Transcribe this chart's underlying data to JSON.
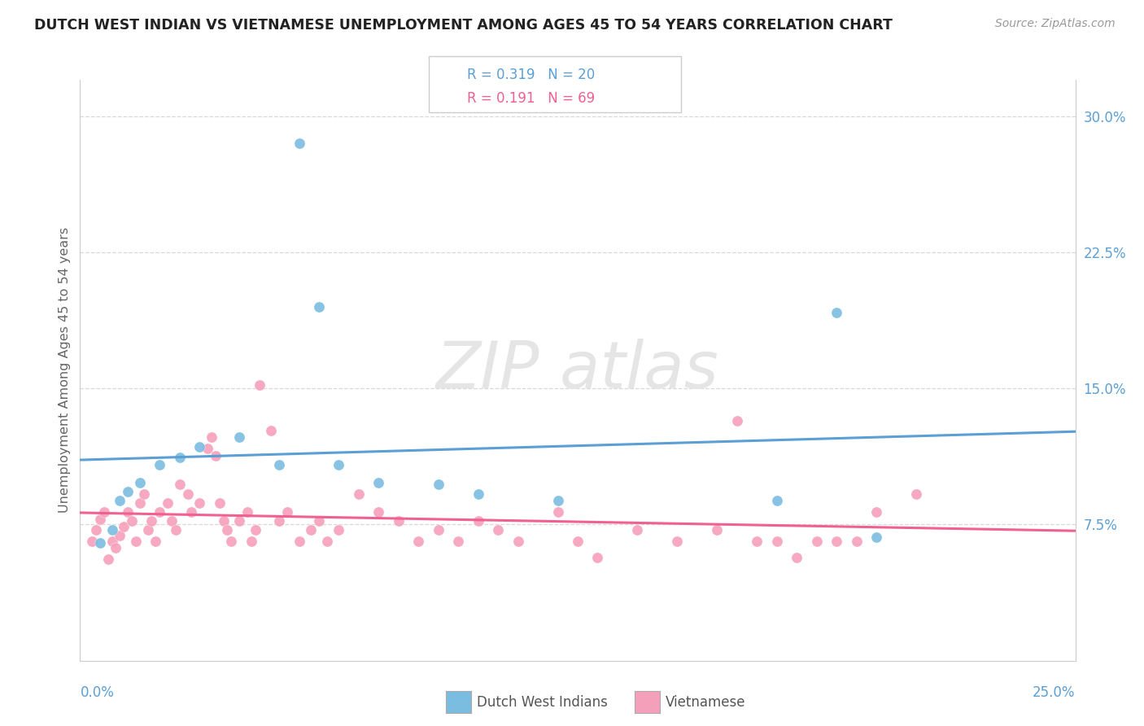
{
  "title": "DUTCH WEST INDIAN VS VIETNAMESE UNEMPLOYMENT AMONG AGES 45 TO 54 YEARS CORRELATION CHART",
  "source": "Source: ZipAtlas.com",
  "ylabel": "Unemployment Among Ages 45 to 54 years",
  "legend1_r": "0.319",
  "legend1_n": "20",
  "legend2_r": "0.191",
  "legend2_n": "69",
  "blue_scatter_color": "#7bbde0",
  "pink_scatter_color": "#f5a0bb",
  "blue_line_color": "#5b9fd4",
  "pink_line_color": "#f06090",
  "xlim": [
    0.0,
    0.25
  ],
  "ylim": [
    0.0,
    0.32
  ],
  "xtick_left": "0.0%",
  "xtick_right": "25.0%",
  "ytick_positions": [
    0.075,
    0.15,
    0.225,
    0.3
  ],
  "ytick_labels": [
    "7.5%",
    "15.0%",
    "22.5%",
    "30.0%"
  ],
  "grid_color": "#d8d8d8",
  "bg_color": "#ffffff",
  "blue_scatter": [
    [
      0.005,
      0.065
    ],
    [
      0.008,
      0.072
    ],
    [
      0.01,
      0.088
    ],
    [
      0.012,
      0.093
    ],
    [
      0.015,
      0.098
    ],
    [
      0.02,
      0.108
    ],
    [
      0.025,
      0.112
    ],
    [
      0.03,
      0.118
    ],
    [
      0.04,
      0.123
    ],
    [
      0.05,
      0.108
    ],
    [
      0.055,
      0.285
    ],
    [
      0.06,
      0.195
    ],
    [
      0.065,
      0.108
    ],
    [
      0.075,
      0.098
    ],
    [
      0.09,
      0.097
    ],
    [
      0.1,
      0.092
    ],
    [
      0.12,
      0.088
    ],
    [
      0.175,
      0.088
    ],
    [
      0.19,
      0.192
    ],
    [
      0.2,
      0.068
    ]
  ],
  "pink_scatter": [
    [
      0.003,
      0.066
    ],
    [
      0.004,
      0.072
    ],
    [
      0.005,
      0.078
    ],
    [
      0.006,
      0.082
    ],
    [
      0.007,
      0.056
    ],
    [
      0.008,
      0.066
    ],
    [
      0.009,
      0.062
    ],
    [
      0.01,
      0.069
    ],
    [
      0.011,
      0.074
    ],
    [
      0.012,
      0.082
    ],
    [
      0.013,
      0.077
    ],
    [
      0.014,
      0.066
    ],
    [
      0.015,
      0.087
    ],
    [
      0.016,
      0.092
    ],
    [
      0.017,
      0.072
    ],
    [
      0.018,
      0.077
    ],
    [
      0.019,
      0.066
    ],
    [
      0.02,
      0.082
    ],
    [
      0.022,
      0.087
    ],
    [
      0.023,
      0.077
    ],
    [
      0.024,
      0.072
    ],
    [
      0.025,
      0.097
    ],
    [
      0.027,
      0.092
    ],
    [
      0.028,
      0.082
    ],
    [
      0.03,
      0.087
    ],
    [
      0.032,
      0.117
    ],
    [
      0.033,
      0.123
    ],
    [
      0.034,
      0.113
    ],
    [
      0.035,
      0.087
    ],
    [
      0.036,
      0.077
    ],
    [
      0.037,
      0.072
    ],
    [
      0.038,
      0.066
    ],
    [
      0.04,
      0.077
    ],
    [
      0.042,
      0.082
    ],
    [
      0.043,
      0.066
    ],
    [
      0.044,
      0.072
    ],
    [
      0.045,
      0.152
    ],
    [
      0.048,
      0.127
    ],
    [
      0.05,
      0.077
    ],
    [
      0.052,
      0.082
    ],
    [
      0.055,
      0.066
    ],
    [
      0.058,
      0.072
    ],
    [
      0.06,
      0.077
    ],
    [
      0.062,
      0.066
    ],
    [
      0.065,
      0.072
    ],
    [
      0.07,
      0.092
    ],
    [
      0.075,
      0.082
    ],
    [
      0.08,
      0.077
    ],
    [
      0.085,
      0.066
    ],
    [
      0.09,
      0.072
    ],
    [
      0.095,
      0.066
    ],
    [
      0.1,
      0.077
    ],
    [
      0.105,
      0.072
    ],
    [
      0.11,
      0.066
    ],
    [
      0.12,
      0.082
    ],
    [
      0.125,
      0.066
    ],
    [
      0.13,
      0.057
    ],
    [
      0.14,
      0.072
    ],
    [
      0.15,
      0.066
    ],
    [
      0.16,
      0.072
    ],
    [
      0.165,
      0.132
    ],
    [
      0.17,
      0.066
    ],
    [
      0.175,
      0.066
    ],
    [
      0.18,
      0.057
    ],
    [
      0.185,
      0.066
    ],
    [
      0.19,
      0.066
    ],
    [
      0.195,
      0.066
    ],
    [
      0.2,
      0.082
    ],
    [
      0.21,
      0.092
    ]
  ]
}
